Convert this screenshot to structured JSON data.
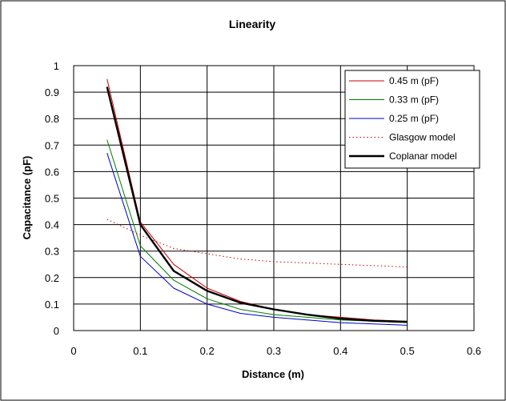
{
  "chart_data": {
    "type": "line",
    "title": "Linearity",
    "xlabel": "Distance (m)",
    "ylabel": "Capacitance (pF)",
    "xlim": [
      0,
      0.6
    ],
    "ylim": [
      0,
      1
    ],
    "x_ticks": [
      "0",
      "0.1",
      "0.2",
      "0.3",
      "0.4",
      "0.5",
      "0.6"
    ],
    "y_ticks": [
      "0",
      "0.1",
      "0.2",
      "0.3",
      "0.4",
      "0.5",
      "0.6",
      "0.7",
      "0.8",
      "0.9",
      "1"
    ],
    "grid": "horizontal and vertical",
    "legend_position": "top-right",
    "series": [
      {
        "name": "0.45 m (pF)",
        "color": "#cc0000",
        "style": "solid",
        "x": [
          0.05,
          0.1,
          0.15,
          0.2,
          0.25,
          0.3,
          0.35,
          0.4,
          0.45,
          0.5
        ],
        "y": [
          0.95,
          0.41,
          0.25,
          0.16,
          0.11,
          0.08,
          0.06,
          0.05,
          0.04,
          0.035
        ]
      },
      {
        "name": "0.33 m (pF)",
        "color": "#008000",
        "style": "solid",
        "x": [
          0.05,
          0.1,
          0.15,
          0.2,
          0.25,
          0.3,
          0.35,
          0.4,
          0.45,
          0.5
        ],
        "y": [
          0.72,
          0.32,
          0.19,
          0.12,
          0.08,
          0.06,
          0.05,
          0.04,
          0.035,
          0.03
        ]
      },
      {
        "name": "0.25 m (pF)",
        "color": "#0000cc",
        "style": "solid",
        "x": [
          0.05,
          0.1,
          0.15,
          0.2,
          0.25,
          0.3,
          0.35,
          0.4,
          0.45,
          0.5
        ],
        "y": [
          0.67,
          0.28,
          0.16,
          0.1,
          0.065,
          0.05,
          0.04,
          0.03,
          0.025,
          0.02
        ]
      },
      {
        "name": "Glasgow model",
        "color": "#cc0000",
        "style": "dotted",
        "x": [
          0.05,
          0.1,
          0.15,
          0.2,
          0.25,
          0.3,
          0.35,
          0.4,
          0.45,
          0.5
        ],
        "y": [
          0.42,
          0.36,
          0.31,
          0.29,
          0.27,
          0.26,
          0.255,
          0.25,
          0.245,
          0.24
        ]
      },
      {
        "name": "Coplanar model",
        "color": "#000000",
        "style": "thick",
        "x": [
          0.05,
          0.1,
          0.15,
          0.2,
          0.25,
          0.3,
          0.35,
          0.4,
          0.45,
          0.5
        ],
        "y": [
          0.92,
          0.4,
          0.225,
          0.15,
          0.105,
          0.08,
          0.06,
          0.045,
          0.037,
          0.033
        ]
      }
    ]
  }
}
